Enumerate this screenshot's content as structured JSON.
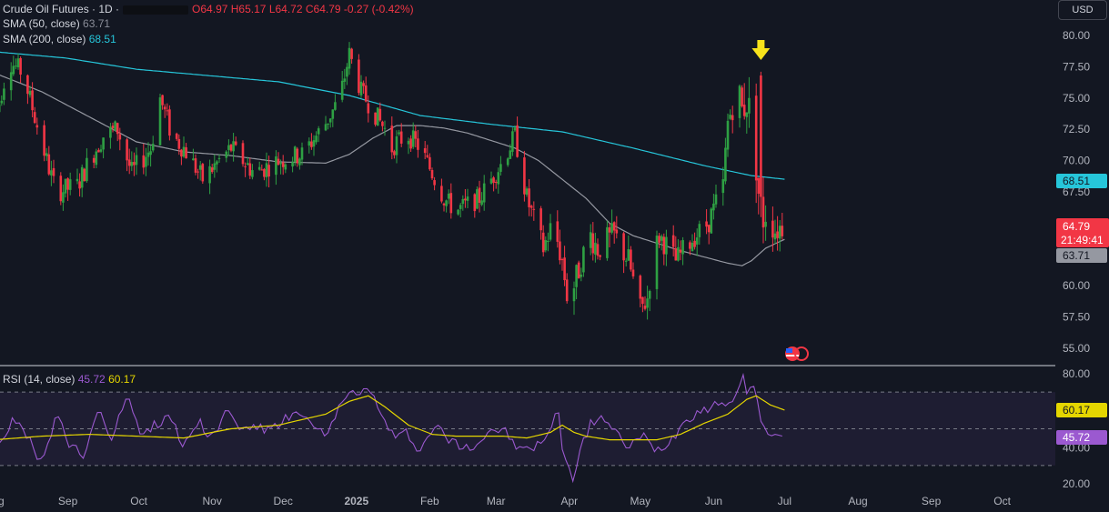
{
  "header": {
    "symbol": "Crude Oil Futures · 1D ·",
    "open": "O64.97",
    "high": "H65.17",
    "low": "L64.72",
    "close": "C64.79",
    "change": "-0.27 (-0.42%)",
    "sma50_label": "SMA (50, close)",
    "sma50_value": "63.71",
    "sma200_label": "SMA (200, close)",
    "sma200_value": "68.51",
    "rsi_label": "RSI (14, close)",
    "rsi_value": "45.72",
    "rsi_ma_value": "60.17",
    "currency": "USD"
  },
  "badges": {
    "price": "64.79",
    "countdown": "21:49:41",
    "sma50": "63.71",
    "sma200": "68.51",
    "rsi_ma": "60.17",
    "rsi": "45.72"
  },
  "colors": {
    "bg": "#131722",
    "up": "#26a69a",
    "up_candle": "#2ea043",
    "down": "#f23645",
    "sma200": "#26c6da",
    "sma50": "#9598a1",
    "rsi": "#9b59d0",
    "rsi_ma": "#e5d600",
    "arrow": "#f7e21b"
  },
  "chart_data": [
    {
      "type": "candlestick",
      "title": "Crude Oil Futures · 1D",
      "ylim": [
        54,
        81
      ],
      "price_ticks": [
        "80.00",
        "77.50",
        "75.00",
        "72.50",
        "70.00",
        "67.50",
        "65.00",
        "62.50",
        "60.00",
        "57.50",
        "55.00"
      ],
      "x_labels": [
        "Aug",
        "Sep",
        "Oct",
        "Nov",
        "Dec",
        "2025",
        "Feb",
        "Mar",
        "Apr",
        "May",
        "Jun",
        "Jul",
        "Aug",
        "Sep",
        "Oct"
      ],
      "x_label_days": [
        0,
        31,
        61,
        92,
        122,
        153,
        184,
        212,
        243,
        273,
        304,
        334,
        365,
        396,
        426
      ],
      "bold_label": "2025",
      "date_origin": "Aug 1",
      "last_candle_day": 334,
      "trend": {
        "close_days": [
          0,
          6,
          12,
          22,
          26,
          35,
          40,
          46,
          52,
          58,
          66,
          70,
          75,
          80,
          88,
          95,
          100,
          105,
          110,
          120,
          130,
          140,
          146,
          150,
          155,
          160,
          165,
          168,
          170,
          175,
          180,
          185,
          190,
          195,
          200,
          205,
          210,
          215,
          220,
          225,
          232,
          236,
          240,
          243,
          245,
          248,
          252,
          255,
          262,
          268,
          273,
          276,
          278,
          281,
          285,
          288,
          292,
          296,
          300,
          304,
          308,
          310,
          314,
          316,
          318,
          322,
          324,
          326,
          328,
          330,
          333,
          334
        ],
        "close_values": [
          73,
          78,
          77,
          70,
          67.5,
          68,
          70,
          72,
          72.5,
          69,
          71,
          75,
          72,
          71,
          68.5,
          70,
          71,
          70,
          69,
          70,
          70.5,
          73,
          75,
          78.5,
          75.5,
          74,
          72.5,
          71,
          71.5,
          72,
          71,
          69,
          67,
          66,
          66.5,
          67,
          68.5,
          70,
          72,
          67,
          63,
          65,
          62,
          58,
          60,
          62,
          64,
          63,
          64,
          62,
          58,
          59,
          62,
          64,
          63,
          62,
          63,
          64,
          64.5,
          66,
          68,
          73,
          76,
          74,
          75,
          70,
          65,
          66,
          65.5,
          64.5,
          64.8,
          64.79
        ]
      },
      "volatility_days": [
        0,
        60,
        90,
        150,
        220,
        240,
        260,
        290,
        310,
        320,
        334
      ],
      "volatility": [
        1.4,
        1.6,
        1.5,
        1.4,
        1.4,
        1.9,
        2.0,
        1.6,
        1.8,
        3.6,
        1.8
      ],
      "spikes": [
        {
          "day": 314,
          "high": 77.6
        },
        {
          "day": 324,
          "open": 76.8,
          "high": 77.1,
          "close": 67.1
        }
      ],
      "sma200": {
        "days": [
          0,
          30,
          60,
          90,
          120,
          150,
          180,
          210,
          240,
          270,
          300,
          320,
          334
        ],
        "values": [
          78.7,
          78.2,
          77.3,
          76.8,
          76.3,
          75.2,
          73.6,
          72.9,
          72.3,
          71.0,
          69.6,
          68.8,
          68.51
        ]
      },
      "sma50": {
        "days": [
          0,
          20,
          40,
          60,
          80,
          100,
          120,
          140,
          150,
          160,
          170,
          180,
          190,
          200,
          210,
          220,
          230,
          240,
          250,
          260,
          270,
          280,
          290,
          300,
          310,
          316,
          320,
          326,
          334
        ],
        "values": [
          77,
          75.5,
          73.5,
          71.5,
          70.7,
          70.4,
          69.9,
          69.8,
          70.5,
          71.8,
          72.8,
          72.8,
          72.6,
          72.2,
          71.6,
          71,
          70,
          68.5,
          67,
          65,
          64,
          63.4,
          62.8,
          62.3,
          61.8,
          61.6,
          62,
          63,
          63.71
        ]
      },
      "arrow_day": 324
    },
    {
      "type": "line",
      "title": "RSI (14, close)",
      "ylim": [
        20,
        80
      ],
      "ticks": [
        "80.00",
        "20.00"
      ],
      "levels": [
        70,
        50,
        30
      ],
      "rsi": {
        "days": [
          0,
          8,
          14,
          20,
          26,
          32,
          38,
          44,
          50,
          56,
          62,
          68,
          74,
          80,
          86,
          92,
          98,
          104,
          110,
          116,
          122,
          128,
          134,
          140,
          146,
          150,
          154,
          158,
          162,
          166,
          170,
          174,
          180,
          186,
          192,
          198,
          204,
          210,
          216,
          222,
          228,
          234,
          238,
          240,
          242,
          244,
          248,
          252,
          256,
          262,
          268,
          274,
          280,
          286,
          292,
          298,
          304,
          308,
          312,
          314,
          316,
          318,
          320,
          322,
          324,
          326,
          328,
          330,
          334
        ],
        "values": [
          38,
          55,
          45,
          30,
          58,
          40,
          35,
          62,
          44,
          70,
          48,
          52,
          58,
          40,
          55,
          45,
          60,
          50,
          52,
          48,
          55,
          58,
          52,
          45,
          62,
          72,
          66,
          76,
          60,
          52,
          44,
          48,
          38,
          52,
          44,
          40,
          42,
          50,
          48,
          38,
          40,
          45,
          65,
          40,
          30,
          22,
          40,
          52,
          58,
          48,
          40,
          46,
          38,
          44,
          55,
          60,
          62,
          66,
          62,
          70,
          78,
          72,
          75,
          68,
          55,
          48,
          46,
          47,
          45.72
        ]
      },
      "rsi_ma": {
        "days": [
          0,
          20,
          40,
          60,
          80,
          100,
          120,
          140,
          150,
          158,
          165,
          175,
          185,
          195,
          205,
          215,
          225,
          235,
          240,
          245,
          250,
          260,
          270,
          280,
          290,
          300,
          310,
          318,
          322,
          328,
          334
        ],
        "values": [
          44,
          46,
          47,
          46,
          45,
          50,
          52,
          58,
          65,
          68,
          62,
          52,
          47,
          46,
          46,
          46,
          45,
          48,
          52,
          48,
          46,
          44,
          44,
          44,
          47,
          53,
          58,
          66,
          68,
          63,
          60.17
        ]
      }
    }
  ]
}
